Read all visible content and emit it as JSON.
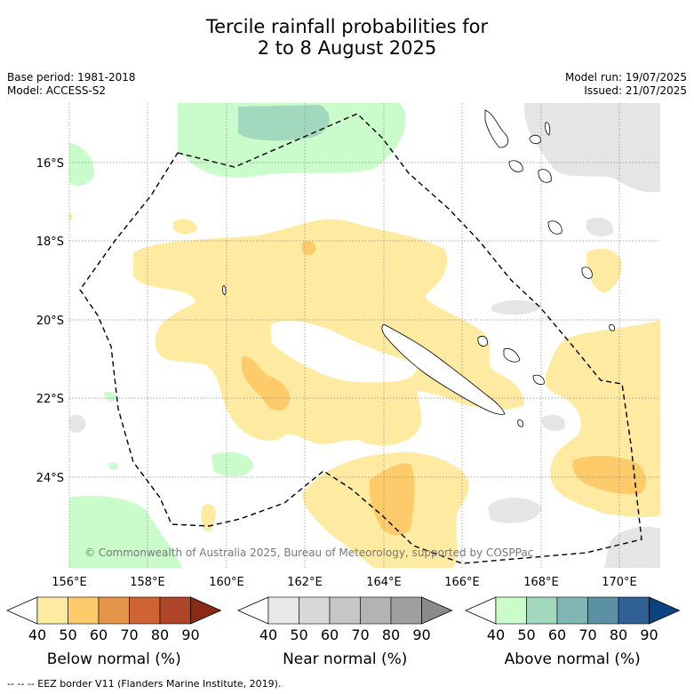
{
  "title_line1": "Tercile rainfall probabilities for",
  "title_line2": "2 to 8 August 2025",
  "base_period": "Base period: 1981-2018",
  "model": "Model: ACCESS-S2",
  "model_run": "Model run: 19/07/2025",
  "issued": "Issued: 21/07/2025",
  "copyright": "© Commonwealth of Australia 2025, Bureau of Meteorology, supported by COSPPac",
  "footer": "-- -- -- EEZ border V11 (Flanders Marine Institute, 2019).",
  "lat_labels": [
    "16°S",
    "18°S",
    "20°S",
    "22°S",
    "24°S"
  ],
  "lon_labels": [
    "156°E",
    "158°E",
    "160°E",
    "162°E",
    "164°E",
    "166°E",
    "168°E",
    "170°E"
  ],
  "colorbars": [
    {
      "label": "Below normal (%)",
      "ticks": [
        "40",
        "50",
        "60",
        "70",
        "80",
        "90"
      ],
      "colors": [
        "#ffffff",
        "#feeba1",
        "#fdcb6a",
        "#e5954a",
        "#ce6431",
        "#ad4526",
        "#8a2a16"
      ]
    },
    {
      "label": "Near normal (%)",
      "ticks": [
        "40",
        "50",
        "60",
        "70",
        "80",
        "90"
      ],
      "colors": [
        "#ffffff",
        "#e8e8e8",
        "#d8d8d8",
        "#c6c6c6",
        "#b3b3b3",
        "#9f9f9f",
        "#8a8a8a"
      ]
    },
    {
      "label": "Above normal (%)",
      "ticks": [
        "40",
        "50",
        "60",
        "70",
        "80",
        "90"
      ],
      "colors": [
        "#ffffff",
        "#c9fbcb",
        "#a2d9be",
        "#82b6b2",
        "#5b91a2",
        "#2f6094",
        "#0c4280"
      ]
    }
  ],
  "legend_colors": {
    "below_50": "#feeba1",
    "below_60": "#fdcb6a",
    "near_50": "#e5e5e5",
    "above_50": "#c9fbcb",
    "above_60": "#a2d9be"
  }
}
